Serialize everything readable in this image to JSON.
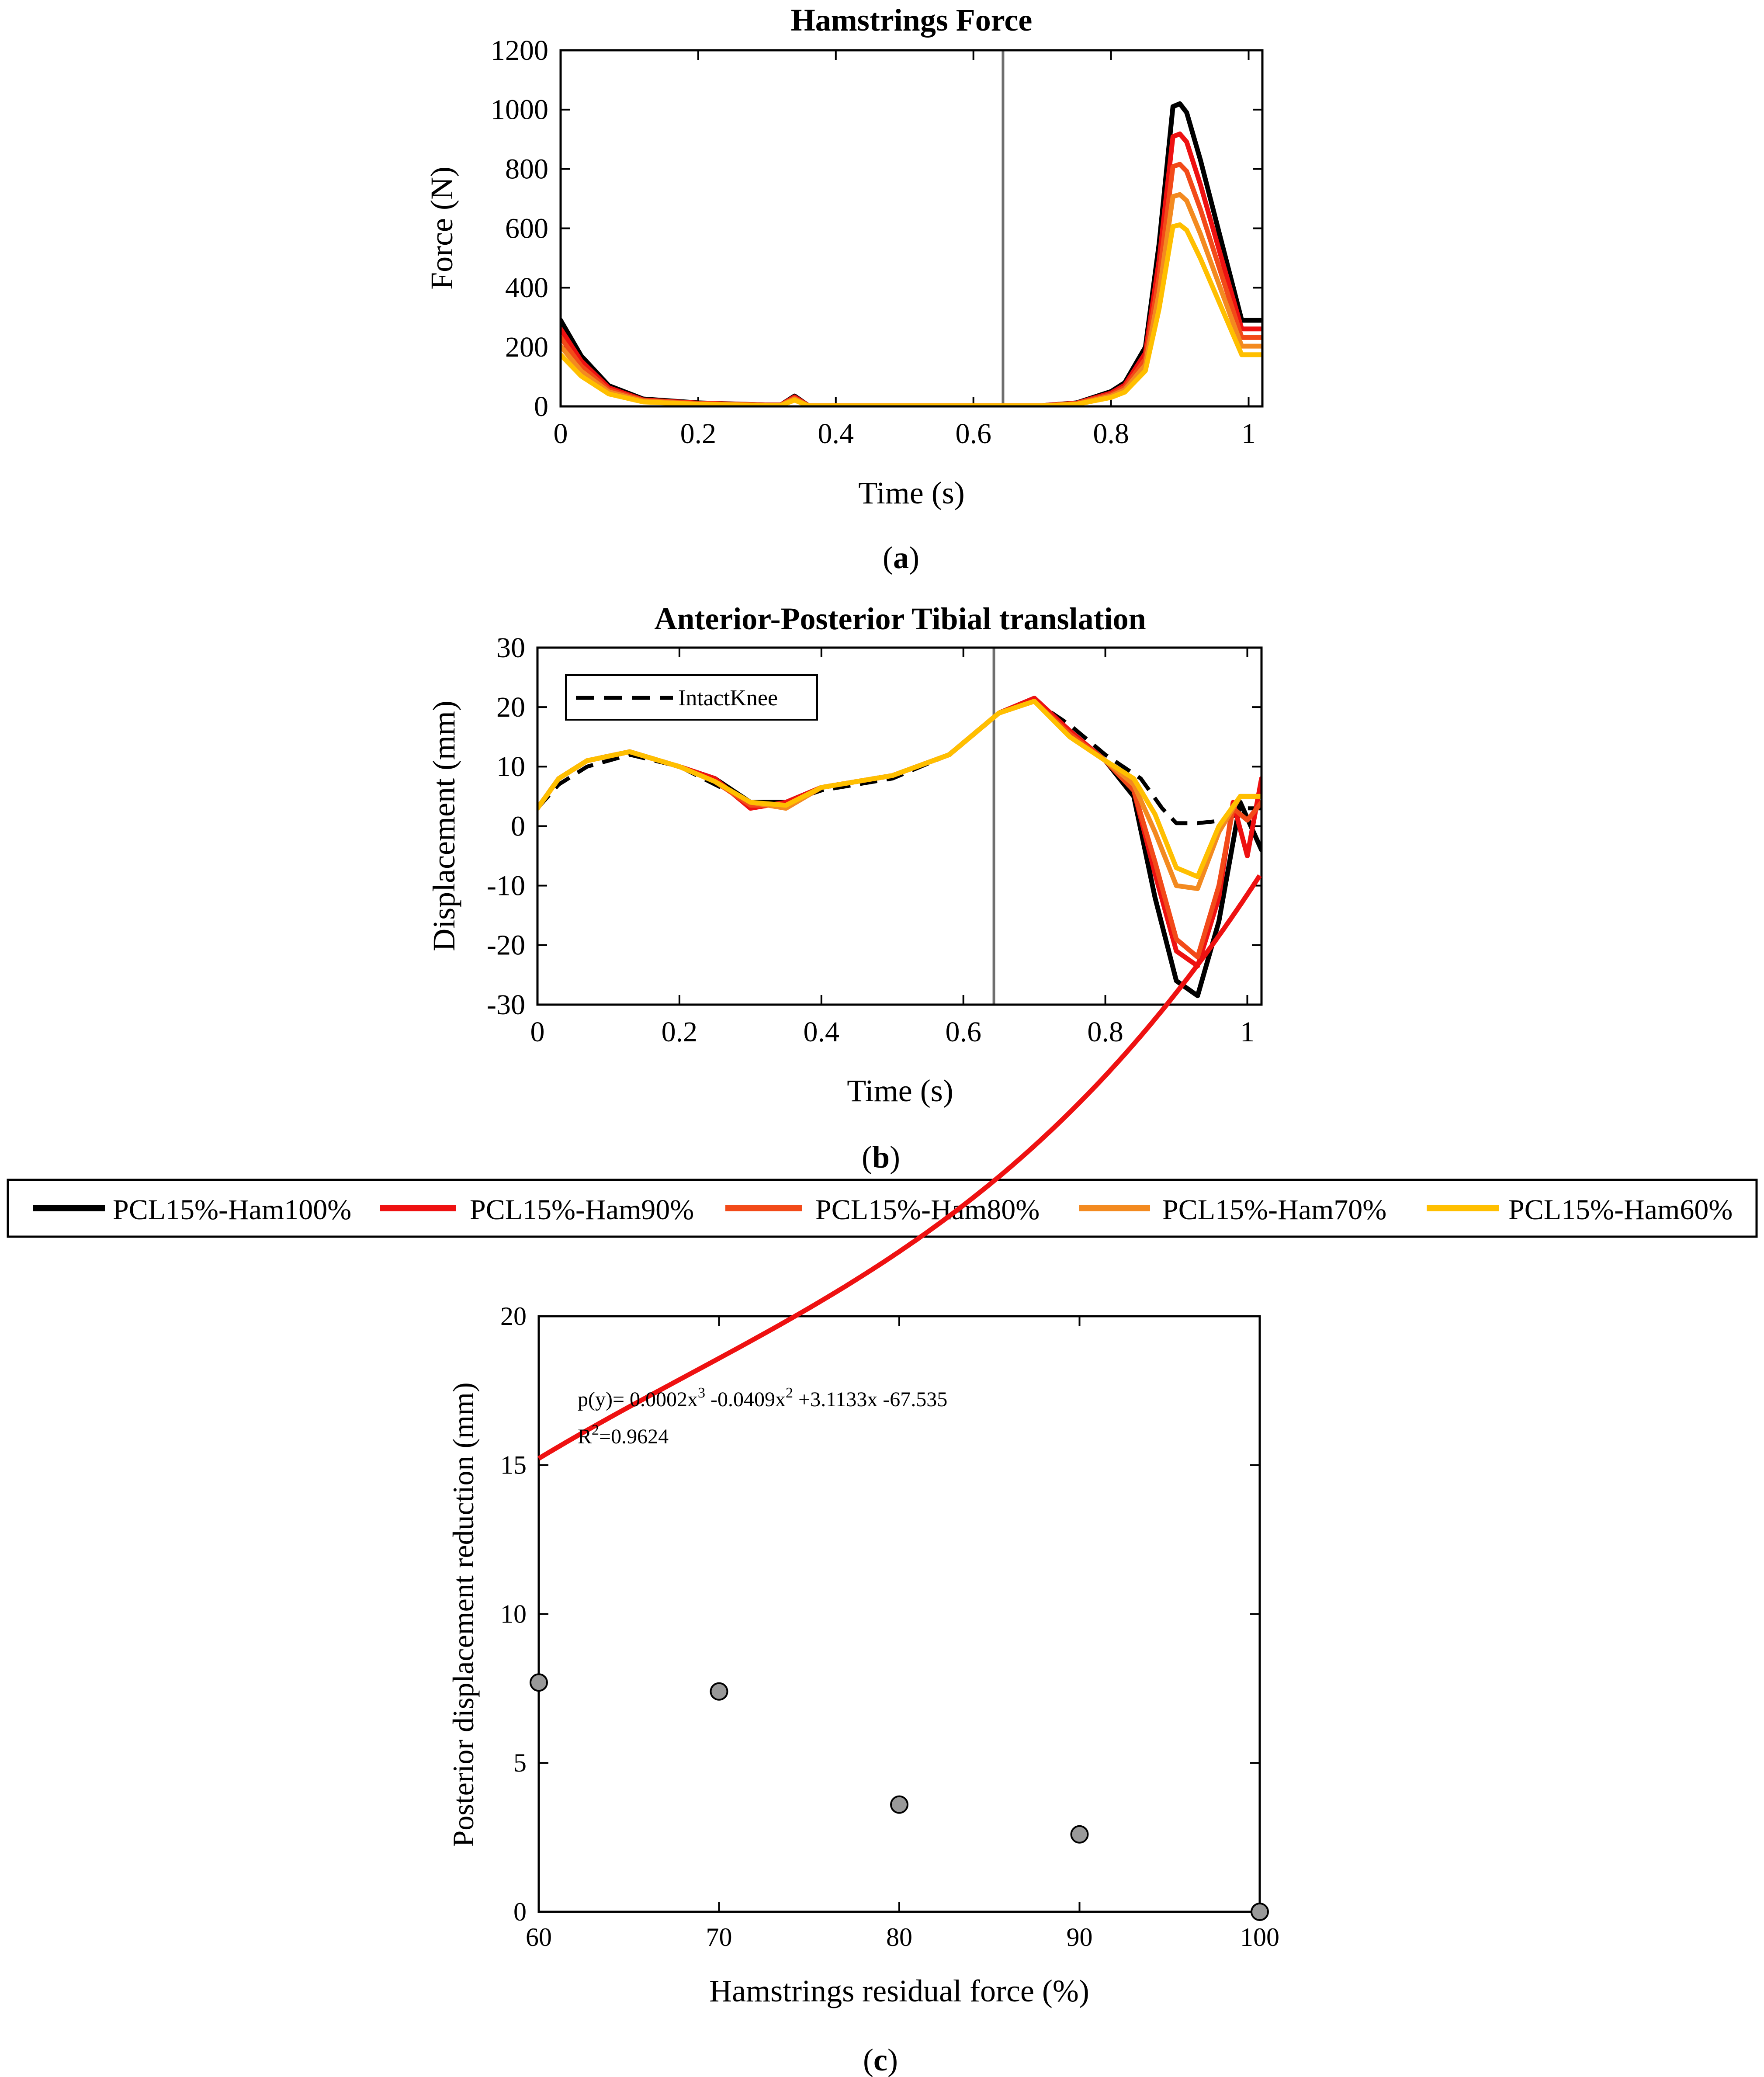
{
  "colors": {
    "ham100": "#000000",
    "ham90": "#ee1111",
    "ham80": "#f24a19",
    "ham70": "#f38a20",
    "ham60": "#ffbf00",
    "intact": "#000000",
    "fit_line": "#ee1111",
    "marker_fill": "#999999",
    "event_line": "#6e6e6e"
  },
  "legend": {
    "entries": [
      "PCL15%-Ham100%",
      "PCL15%-Ham90%",
      "PCL15%-Ham80%",
      "PCL15%-Ham70%",
      "PCL15%-Ham60%"
    ]
  },
  "chart_data": [
    {
      "panel_label": "a",
      "type": "line",
      "title": "Hamstrings Force",
      "xlabel": "Time (s)",
      "ylabel": "Force (N)",
      "xlim": [
        0,
        1.02
      ],
      "ylim": [
        0,
        1200
      ],
      "xticks": [
        0,
        0.2,
        0.4,
        0.6,
        0.8,
        1
      ],
      "xtick_labels": [
        "0",
        "0.2",
        "0.4",
        "0.6",
        "0.8",
        "1"
      ],
      "yticks": [
        0,
        200,
        400,
        600,
        800,
        1000,
        1200
      ],
      "ytick_labels": [
        "0",
        "200",
        "400",
        "600",
        "800",
        "1000",
        "1200"
      ],
      "vline_x": 0.643,
      "series": [
        {
          "name": "PCL15%-Ham100%",
          "x": [
            0,
            0.03,
            0.07,
            0.12,
            0.2,
            0.3,
            0.32,
            0.34,
            0.36,
            0.4,
            0.5,
            0.6,
            0.7,
            0.75,
            0.8,
            0.82,
            0.85,
            0.87,
            0.89,
            0.9,
            0.91,
            0.93,
            0.96,
            0.99,
            1.02
          ],
          "values": [
            290,
            170,
            70,
            25,
            12,
            5,
            5,
            35,
            3,
            3,
            3,
            3,
            3,
            12,
            50,
            80,
            200,
            550,
            1010,
            1020,
            990,
            830,
            560,
            290,
            290
          ]
        },
        {
          "name": "PCL15%-Ham90%",
          "x": [
            0,
            0.03,
            0.07,
            0.12,
            0.2,
            0.3,
            0.32,
            0.34,
            0.36,
            0.4,
            0.5,
            0.6,
            0.7,
            0.75,
            0.8,
            0.82,
            0.85,
            0.87,
            0.89,
            0.9,
            0.91,
            0.93,
            0.96,
            0.99,
            1.02
          ],
          "values": [
            261,
            153,
            63,
            22,
            11,
            5,
            5,
            32,
            3,
            3,
            3,
            3,
            3,
            11,
            45,
            72,
            180,
            495,
            909,
            918,
            891,
            747,
            504,
            261,
            261
          ]
        },
        {
          "name": "PCL15%-Ham80%",
          "x": [
            0,
            0.03,
            0.07,
            0.12,
            0.2,
            0.3,
            0.32,
            0.34,
            0.36,
            0.4,
            0.5,
            0.6,
            0.7,
            0.75,
            0.8,
            0.82,
            0.85,
            0.87,
            0.89,
            0.9,
            0.91,
            0.93,
            0.96,
            0.99,
            1.02
          ],
          "values": [
            232,
            136,
            56,
            20,
            10,
            4,
            4,
            28,
            2,
            2,
            2,
            2,
            2,
            10,
            40,
            64,
            160,
            440,
            808,
            816,
            792,
            664,
            448,
            232,
            232
          ]
        },
        {
          "name": "PCL15%-Ham70%",
          "x": [
            0,
            0.03,
            0.07,
            0.12,
            0.2,
            0.3,
            0.32,
            0.34,
            0.36,
            0.4,
            0.5,
            0.6,
            0.7,
            0.75,
            0.8,
            0.82,
            0.85,
            0.87,
            0.89,
            0.9,
            0.91,
            0.93,
            0.96,
            0.99,
            1.02
          ],
          "values": [
            203,
            119,
            49,
            18,
            8,
            4,
            4,
            25,
            2,
            2,
            2,
            2,
            2,
            8,
            35,
            56,
            140,
            385,
            707,
            714,
            693,
            581,
            392,
            203,
            203
          ]
        },
        {
          "name": "PCL15%-Ham60%",
          "x": [
            0,
            0.03,
            0.07,
            0.12,
            0.2,
            0.3,
            0.32,
            0.34,
            0.36,
            0.4,
            0.5,
            0.6,
            0.7,
            0.75,
            0.8,
            0.82,
            0.85,
            0.87,
            0.89,
            0.9,
            0.91,
            0.93,
            0.96,
            0.99,
            1.02
          ],
          "values": [
            174,
            102,
            42,
            15,
            7,
            3,
            3,
            21,
            2,
            2,
            2,
            2,
            2,
            7,
            30,
            48,
            120,
            330,
            606,
            612,
            594,
            498,
            336,
            174,
            174
          ]
        }
      ]
    },
    {
      "panel_label": "b",
      "type": "line",
      "title": "Anterior-Posterior Tibial translation",
      "xlabel": "Time (s)",
      "ylabel": "Displacement (mm)",
      "xlim": [
        0,
        1.02
      ],
      "ylim": [
        -30,
        30
      ],
      "xticks": [
        0,
        0.2,
        0.4,
        0.6,
        0.8,
        1
      ],
      "xtick_labels": [
        "0",
        "0.2",
        "0.4",
        "0.6",
        "0.8",
        "1"
      ],
      "yticks": [
        -30,
        -20,
        -10,
        0,
        10,
        20,
        30
      ],
      "ytick_labels": [
        "-30",
        "-20",
        "-10",
        "0",
        "10",
        "20",
        "30"
      ],
      "vline_x": 0.643,
      "inner_legend": "IntactKnee",
      "series": [
        {
          "name": "IntactKnee",
          "dashed": true,
          "x": [
            0,
            0.03,
            0.07,
            0.13,
            0.2,
            0.25,
            0.3,
            0.35,
            0.4,
            0.5,
            0.58,
            0.65,
            0.7,
            0.75,
            0.8,
            0.85,
            0.88,
            0.9,
            0.93,
            0.97,
            1.0,
            1.02
          ],
          "values": [
            3,
            7,
            10,
            12,
            10,
            7,
            4,
            4,
            6,
            8,
            12,
            19,
            21,
            17,
            12,
            8,
            3,
            0.5,
            0.5,
            1,
            3,
            3
          ]
        },
        {
          "name": "PCL15%-Ham100%",
          "x": [
            0,
            0.03,
            0.07,
            0.13,
            0.2,
            0.25,
            0.3,
            0.35,
            0.4,
            0.5,
            0.58,
            0.65,
            0.7,
            0.75,
            0.8,
            0.84,
            0.87,
            0.9,
            0.93,
            0.96,
            0.99,
            1.02
          ],
          "values": [
            3,
            8,
            11,
            12.5,
            10,
            8,
            4,
            4,
            6.5,
            8.5,
            12,
            19,
            21.5,
            16,
            11,
            5,
            -12,
            -26,
            -28.5,
            -16,
            4,
            -4
          ]
        },
        {
          "name": "PCL15%-Ham90%",
          "x": [
            0,
            0.03,
            0.07,
            0.13,
            0.2,
            0.25,
            0.3,
            0.35,
            0.4,
            0.5,
            0.58,
            0.65,
            0.7,
            0.75,
            0.8,
            0.84,
            0.87,
            0.9,
            0.93,
            0.96,
            0.98,
            1.0,
            1.02
          ],
          "values": [
            3,
            8,
            11,
            12.5,
            10,
            8,
            3,
            4,
            6.5,
            8.5,
            12,
            19,
            21.5,
            16,
            11,
            6,
            -8,
            -21,
            -23.5,
            -12,
            4,
            -5,
            8
          ]
        },
        {
          "name": "PCL15%-Ham80%",
          "x": [
            0,
            0.03,
            0.07,
            0.13,
            0.2,
            0.25,
            0.3,
            0.35,
            0.4,
            0.5,
            0.58,
            0.65,
            0.7,
            0.75,
            0.8,
            0.84,
            0.87,
            0.9,
            0.93,
            0.96,
            0.98,
            1.0,
            1.02
          ],
          "values": [
            3,
            8,
            11,
            12.5,
            10,
            7.5,
            3.5,
            3.5,
            6.5,
            8.5,
            12,
            19,
            21,
            15.5,
            11,
            6,
            -6,
            -19,
            -22,
            -10,
            3,
            1,
            4
          ]
        },
        {
          "name": "PCL15%-Ham70%",
          "x": [
            0,
            0.03,
            0.07,
            0.13,
            0.2,
            0.25,
            0.3,
            0.35,
            0.4,
            0.5,
            0.58,
            0.65,
            0.7,
            0.75,
            0.8,
            0.84,
            0.87,
            0.9,
            0.93,
            0.96,
            0.99,
            1.02
          ],
          "values": [
            3,
            8,
            11,
            12.5,
            10,
            7.5,
            4,
            3,
            6.5,
            8.5,
            12,
            19,
            21,
            15,
            11,
            7,
            -1,
            -10,
            -10.5,
            -1,
            5,
            5
          ]
        },
        {
          "name": "PCL15%-Ham60%",
          "x": [
            0,
            0.03,
            0.07,
            0.13,
            0.2,
            0.25,
            0.3,
            0.35,
            0.4,
            0.5,
            0.58,
            0.65,
            0.7,
            0.75,
            0.8,
            0.84,
            0.87,
            0.9,
            0.93,
            0.96,
            0.99,
            1.02
          ],
          "values": [
            3,
            8,
            11,
            12.5,
            10,
            7.5,
            4,
            3.5,
            6.5,
            8.5,
            12,
            19,
            21,
            15,
            11,
            8,
            2,
            -7,
            -8.5,
            0,
            5,
            5
          ]
        }
      ]
    },
    {
      "panel_label": "c",
      "type": "scatter",
      "xlabel": "Hamstrings residual force (%)",
      "ylabel": "Posterior displacement reduction (mm)",
      "xlim": [
        60,
        100
      ],
      "ylim": [
        0,
        20
      ],
      "xticks": [
        60,
        70,
        80,
        90,
        100
      ],
      "xtick_labels": [
        "60",
        "70",
        "80",
        "90",
        "100"
      ],
      "yticks": [
        0,
        5,
        10,
        15,
        20
      ],
      "ytick_labels": [
        "0",
        "5",
        "10",
        "15",
        "20"
      ],
      "points": {
        "x": [
          60,
          70,
          80,
          90,
          100
        ],
        "values": [
          7.7,
          7.4,
          3.6,
          2.6,
          0
        ]
      },
      "fit": {
        "coefficients": [
          0.0002,
          -0.0409,
          3.1133,
          -67.535
        ],
        "x_range": [
          60,
          100
        ]
      },
      "equation": {
        "prefix": "p(y)= 0.0002x",
        "exp1": "3",
        "mid": " -0.0409x",
        "exp2": "2",
        "suffix": " +3.1133x -67.535",
        "r2_prefix": "R",
        "r2_exp": "2",
        "r2_value": "=0.9624"
      }
    }
  ]
}
